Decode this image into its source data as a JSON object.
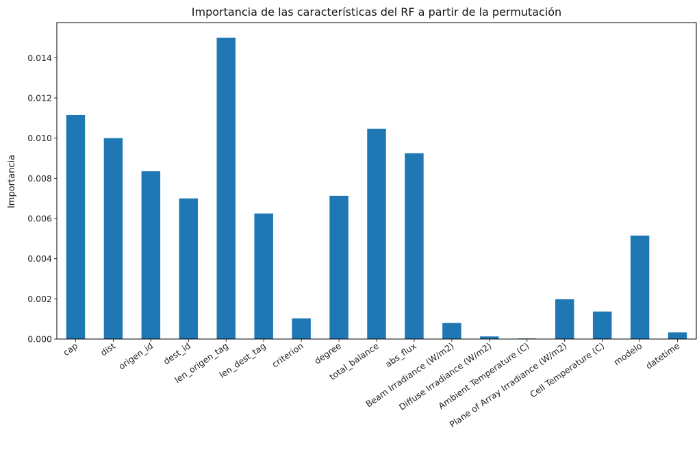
{
  "chart_data": {
    "type": "bar",
    "title": "Importancia de las características del RF a partir de la permutación",
    "xlabel": "",
    "ylabel": "Importancia",
    "ylim": [
      0,
      0.01575
    ],
    "yticks": [
      "0.000",
      "0.002",
      "0.004",
      "0.006",
      "0.008",
      "0.010",
      "0.012",
      "0.014"
    ],
    "ytick_values": [
      0,
      0.002,
      0.004,
      0.006,
      0.008,
      0.01,
      0.012,
      0.014
    ],
    "grid": false,
    "bar_color": "#1f77b4",
    "categories": [
      "cap",
      "dist",
      "origen_id",
      "dest_id",
      "len_origen_tag",
      "len_dest_tag",
      "criterion",
      "degree",
      "total_balance",
      "abs_flux",
      "Beam Irradiance (W/m2)",
      "Diffuse Irradiance (W/m2)",
      "Ambient Temperature (C)",
      "Plane of Array Irradiance (W/m2)",
      "Cell Temperature (C)",
      "modelo",
      "datetime"
    ],
    "values": [
      0.01115,
      0.01,
      0.00835,
      0.007,
      0.015,
      0.00625,
      0.00103,
      0.00713,
      0.01047,
      0.00925,
      0.0008,
      0.00013,
      3e-05,
      0.00198,
      0.00137,
      0.00515,
      0.00033
    ]
  }
}
